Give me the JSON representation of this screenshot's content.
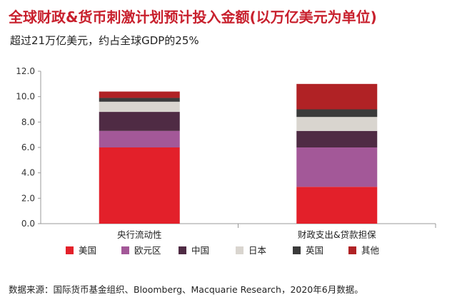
{
  "title": "全球财政&货币刺激计划预计投入金额(以万亿美元为单位)",
  "subtitle": "超过21万亿美元，约占全球GDP的25%",
  "source": "数据来源：国际货币基金组织、Bloomberg、Macquarie Research，2020年6月数据。",
  "chart_data": {
    "type": "bar",
    "stacked": true,
    "categories": [
      "央行流动性",
      "财政支出&贷款担保"
    ],
    "series": [
      {
        "name": "美国",
        "values": [
          6.0,
          2.9
        ],
        "color": "#e3202a"
      },
      {
        "name": "欧元区",
        "values": [
          1.3,
          3.1
        ],
        "color": "#a35898"
      },
      {
        "name": "中国",
        "values": [
          1.5,
          1.3
        ],
        "color": "#4f2b44"
      },
      {
        "name": "日本",
        "values": [
          0.8,
          1.1
        ],
        "color": "#d9d5cf"
      },
      {
        "name": "英国",
        "values": [
          0.3,
          0.6
        ],
        "color": "#3b3b3b"
      },
      {
        "name": "其他",
        "values": [
          0.5,
          2.0
        ],
        "color": "#b02225"
      }
    ],
    "ylim": [
      0,
      12
    ],
    "yticks": [
      "0.0",
      "2.0",
      "4.0",
      "6.0",
      "8.0",
      "10.0",
      "12.0"
    ],
    "grid": false,
    "legend": "bottom",
    "xlabel": "",
    "ylabel": ""
  }
}
